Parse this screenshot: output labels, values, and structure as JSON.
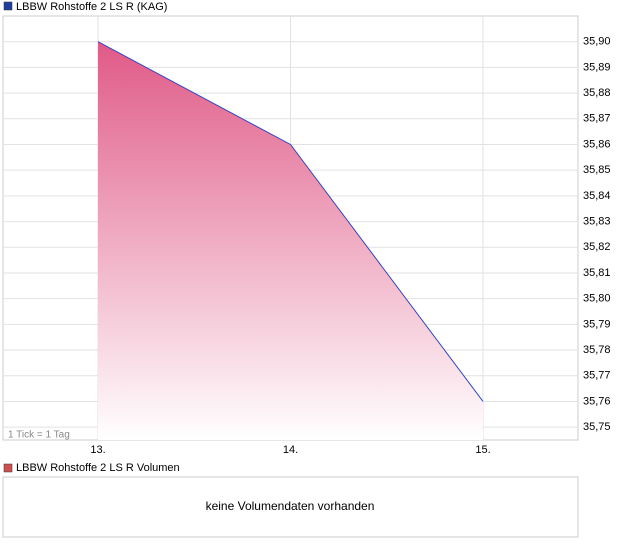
{
  "chart_data": {
    "type": "area",
    "title": "LBBW Rohstoffe 2 LS R (KAG)",
    "color": "#2a48c8",
    "fill_color": "#e05a87",
    "legend_color": "#1f3f9f",
    "categories": [
      "13.",
      "14.",
      "15."
    ],
    "values": [
      35.9,
      35.86,
      35.76
    ],
    "ylim": [
      35.745,
      35.91
    ],
    "yticks": [
      {
        "value": 35.75,
        "label": "35,75"
      },
      {
        "value": 35.76,
        "label": "35,76"
      },
      {
        "value": 35.77,
        "label": "35,77"
      },
      {
        "value": 35.78,
        "label": "35,78"
      },
      {
        "value": 35.79,
        "label": "35,79"
      },
      {
        "value": 35.8,
        "label": "35,80"
      },
      {
        "value": 35.81,
        "label": "35,81"
      },
      {
        "value": 35.82,
        "label": "35,82"
      },
      {
        "value": 35.83,
        "label": "35,83"
      },
      {
        "value": 35.84,
        "label": "35,84"
      },
      {
        "value": 35.85,
        "label": "35,85"
      },
      {
        "value": 35.86,
        "label": "35,86"
      },
      {
        "value": 35.87,
        "label": "35,87"
      },
      {
        "value": 35.88,
        "label": "35,88"
      },
      {
        "value": 35.89,
        "label": "35,89"
      },
      {
        "value": 35.9,
        "label": "35,90"
      }
    ],
    "grid": true,
    "note": "1 Tick = 1 Tag"
  },
  "volume_panel": {
    "title": "LBBW Rohstoffe 2 LS R Volumen",
    "message": "keine Volumendaten vorhanden",
    "legend_color": "#d05050"
  }
}
